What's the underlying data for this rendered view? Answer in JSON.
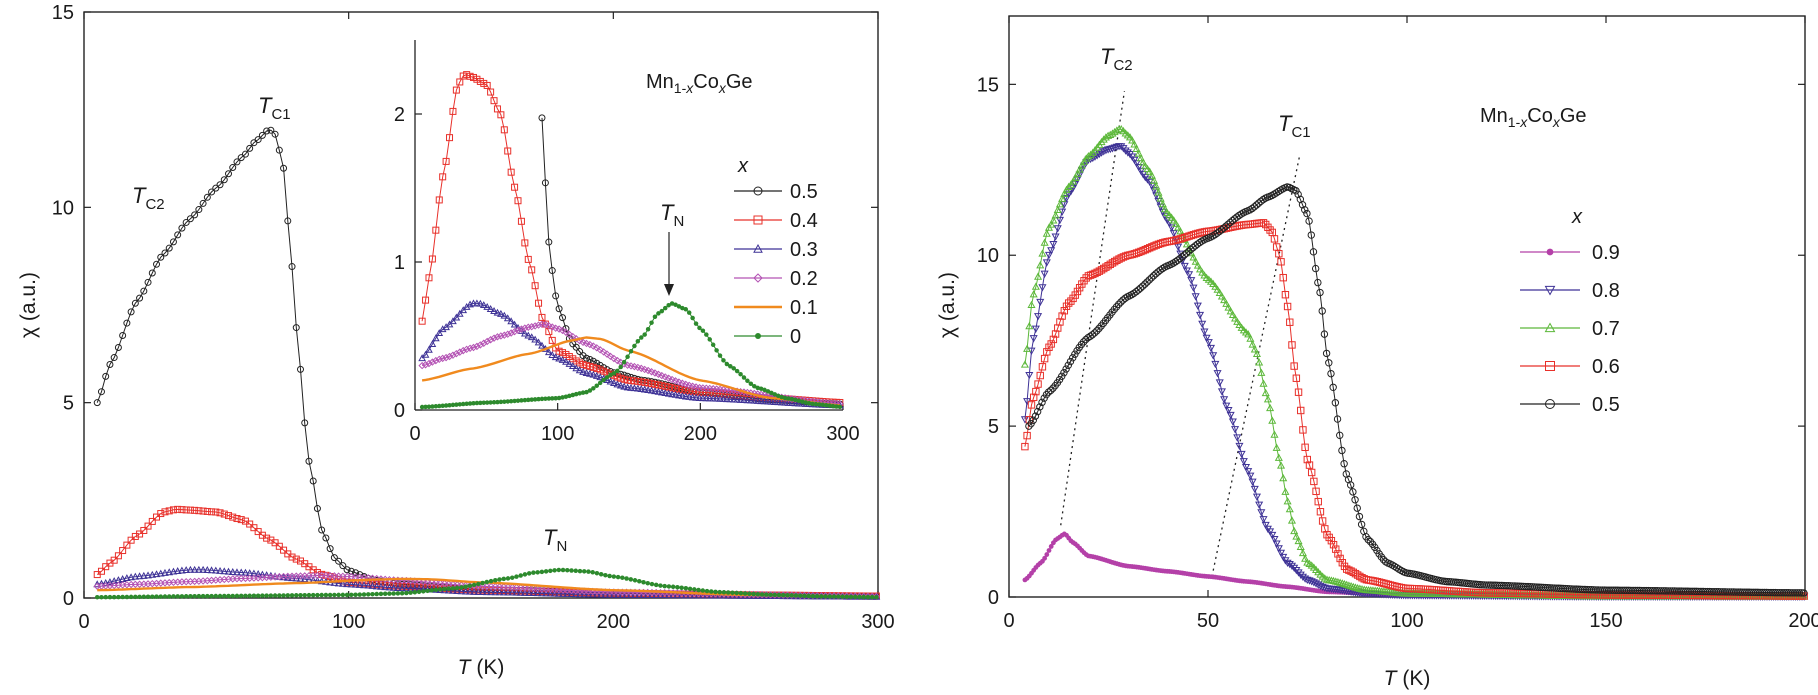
{
  "figure": {
    "colors": {
      "0.5": "#222222",
      "0.4": "#e8302a",
      "0.3": "#3e3296",
      "0.2": "#b453b4",
      "0.1": "#f08a1e",
      "0": "#2d8a2d",
      "0.9": "#b440a8",
      "0.8": "#3e3296",
      "0.7": "#5cb83a",
      "0.6": "#e8302a"
    }
  },
  "chart_data": [
    {
      "id": "left-main",
      "type": "scatter",
      "xlabel": {
        "italic": "T",
        "rest": " (K)"
      },
      "ylabel": "χ (a.u.)",
      "xlim": [
        0,
        300
      ],
      "ylim": [
        0,
        15
      ],
      "xticks": [
        "0",
        "100",
        "200",
        "300"
      ],
      "yticks": [
        "0",
        "5",
        "10",
        "15"
      ],
      "annotations": [
        {
          "main": "T",
          "sub": "C1",
          "x": 73,
          "y": 12.3
        },
        {
          "main": "T",
          "sub": "C2",
          "x": 27,
          "y": 10.1
        },
        {
          "main": "T",
          "sub": "N",
          "x": 181,
          "y": 1.2
        }
      ],
      "series": [
        {
          "name": "0.5",
          "marker": "circle",
          "x": [
            5,
            10,
            20,
            30,
            40,
            50,
            60,
            65,
            70,
            72,
            75,
            78,
            80,
            85,
            90,
            95,
            100,
            110,
            120,
            140,
            160,
            200,
            250,
            300
          ],
          "values": [
            5.0,
            6.0,
            7.6,
            8.8,
            9.7,
            10.5,
            11.3,
            11.7,
            12.0,
            11.9,
            11.2,
            9.0,
            7.0,
            3.5,
            1.7,
            1.0,
            0.7,
            0.45,
            0.35,
            0.25,
            0.2,
            0.12,
            0.07,
            0.04
          ]
        },
        {
          "name": "0.4",
          "marker": "square",
          "x": [
            5,
            10,
            20,
            30,
            35,
            40,
            50,
            60,
            70,
            80,
            90,
            100,
            120,
            150,
            200,
            250,
            300
          ],
          "values": [
            0.6,
            0.9,
            1.6,
            2.2,
            2.27,
            2.25,
            2.2,
            2.0,
            1.5,
            1.0,
            0.6,
            0.4,
            0.3,
            0.2,
            0.12,
            0.08,
            0.05
          ]
        },
        {
          "name": "0.3",
          "marker": "triangle",
          "x": [
            5,
            20,
            40,
            45,
            60,
            80,
            100,
            120,
            150,
            200,
            300
          ],
          "values": [
            0.35,
            0.55,
            0.72,
            0.72,
            0.65,
            0.5,
            0.35,
            0.25,
            0.15,
            0.08,
            0.03
          ]
        },
        {
          "name": "0.2",
          "marker": "diamond",
          "x": [
            5,
            20,
            40,
            60,
            80,
            90,
            100,
            120,
            150,
            200,
            300
          ],
          "values": [
            0.3,
            0.35,
            0.42,
            0.5,
            0.56,
            0.58,
            0.55,
            0.45,
            0.3,
            0.15,
            0.04
          ]
        },
        {
          "name": "0.1",
          "marker": "line",
          "x": [
            5,
            40,
            80,
            110,
            120,
            130,
            150,
            200,
            250,
            300
          ],
          "values": [
            0.2,
            0.28,
            0.38,
            0.47,
            0.49,
            0.48,
            0.4,
            0.2,
            0.08,
            0.03
          ]
        },
        {
          "name": "0",
          "marker": "star",
          "x": [
            5,
            50,
            100,
            120,
            140,
            160,
            170,
            180,
            190,
            200,
            220,
            240,
            260,
            280,
            300
          ],
          "values": [
            0.02,
            0.05,
            0.08,
            0.12,
            0.25,
            0.5,
            0.65,
            0.72,
            0.68,
            0.55,
            0.3,
            0.15,
            0.08,
            0.04,
            0.02
          ]
        }
      ]
    },
    {
      "id": "inset",
      "type": "scatter",
      "xlim": [
        0,
        300
      ],
      "ylim": [
        0,
        2.5
      ],
      "xticks": [
        "0",
        "100",
        "200",
        "300"
      ],
      "yticks": [
        "0",
        "1",
        "2"
      ],
      "title": {
        "pre": "Mn",
        "sub1": "1-",
        "subx": "x",
        "mid": "Co",
        "sub2": "x",
        "post": "Ge"
      },
      "legend_title": "x",
      "legend": [
        "0.5",
        "0.4",
        "0.3",
        "0.2",
        "0.1",
        "0"
      ],
      "arrow_annotation": {
        "main": "T",
        "sub": "N",
        "x": 178,
        "y": 0.75
      }
    },
    {
      "id": "right-main",
      "type": "scatter",
      "xlabel": {
        "italic": "T",
        "rest": " (K)"
      },
      "ylabel": "χ (a.u.)",
      "xlim": [
        0,
        200
      ],
      "ylim": [
        0,
        17
      ],
      "xticks": [
        "0",
        "50",
        "100",
        "150",
        "200"
      ],
      "yticks": [
        "0",
        "5",
        "10",
        "15"
      ],
      "title": {
        "pre": "Mn",
        "sub1": "1-",
        "subx": "x",
        "mid": "Co",
        "sub2": "x",
        "post": "Ge"
      },
      "legend_title": "x",
      "legend": [
        "0.9",
        "0.8",
        "0.7",
        "0.6",
        "0.5"
      ],
      "annotations": [
        {
          "main": "T",
          "sub": "C2",
          "x": 28,
          "y": 15.5
        },
        {
          "main": "T",
          "sub": "C1",
          "x": 72,
          "y": 13.6
        }
      ],
      "series": [
        {
          "name": "0.9",
          "marker": "star",
          "x": [
            4,
            8,
            12,
            14,
            16,
            20,
            30,
            40,
            50,
            60,
            70,
            80,
            100,
            150,
            200
          ],
          "values": [
            0.5,
            1.0,
            1.7,
            1.85,
            1.6,
            1.2,
            0.9,
            0.75,
            0.6,
            0.45,
            0.3,
            0.15,
            0.05,
            0.02,
            0.01
          ]
        },
        {
          "name": "0.8",
          "marker": "invtriangle",
          "x": [
            4,
            6,
            10,
            15,
            20,
            25,
            28,
            30,
            35,
            40,
            45,
            50,
            55,
            60,
            65,
            70,
            75,
            80,
            90,
            100,
            150,
            200
          ],
          "values": [
            5.2,
            7.5,
            10.0,
            11.8,
            12.8,
            13.1,
            13.2,
            13.0,
            12.2,
            11.0,
            9.5,
            7.5,
            5.5,
            3.7,
            2.0,
            1.0,
            0.5,
            0.25,
            0.1,
            0.05,
            0.01,
            0.01
          ]
        },
        {
          "name": "0.7",
          "marker": "triangle",
          "x": [
            4,
            6,
            10,
            15,
            20,
            25,
            28,
            30,
            35,
            40,
            50,
            60,
            62,
            65,
            68,
            70,
            72,
            75,
            80,
            90,
            100,
            150,
            200
          ],
          "values": [
            6.8,
            8.8,
            10.8,
            12.0,
            12.9,
            13.5,
            13.7,
            13.5,
            12.5,
            11.2,
            9.3,
            7.7,
            7.2,
            5.8,
            4.0,
            2.8,
            1.8,
            1.0,
            0.5,
            0.2,
            0.1,
            0.02,
            0.01
          ]
        },
        {
          "name": "0.6",
          "marker": "square",
          "x": [
            4,
            6,
            10,
            15,
            20,
            30,
            40,
            50,
            60,
            64,
            66,
            68,
            70,
            72,
            75,
            80,
            85,
            90,
            100,
            120,
            150,
            200
          ],
          "values": [
            4.4,
            5.8,
            7.3,
            8.6,
            9.4,
            10.0,
            10.4,
            10.7,
            10.9,
            10.95,
            10.7,
            10.0,
            8.5,
            6.5,
            4.0,
            1.8,
            0.8,
            0.5,
            0.25,
            0.12,
            0.06,
            0.03
          ]
        },
        {
          "name": "0.5",
          "marker": "circle",
          "x": [
            5,
            10,
            20,
            30,
            40,
            50,
            60,
            65,
            70,
            72,
            75,
            78,
            80,
            85,
            90,
            95,
            100,
            110,
            120,
            150,
            200
          ],
          "values": [
            5.0,
            6.0,
            7.6,
            8.8,
            9.7,
            10.5,
            11.3,
            11.7,
            12.0,
            11.9,
            11.2,
            9.0,
            7.0,
            3.5,
            1.7,
            1.0,
            0.7,
            0.45,
            0.35,
            0.2,
            0.12
          ]
        }
      ],
      "dotted_guides": [
        {
          "name": "TC2-guide",
          "x": [
            13,
            29
          ],
          "values": [
            2.1,
            14.8
          ]
        },
        {
          "name": "TC1-guide",
          "x": [
            51,
            73
          ],
          "values": [
            0.6,
            12.9
          ]
        }
      ]
    }
  ]
}
